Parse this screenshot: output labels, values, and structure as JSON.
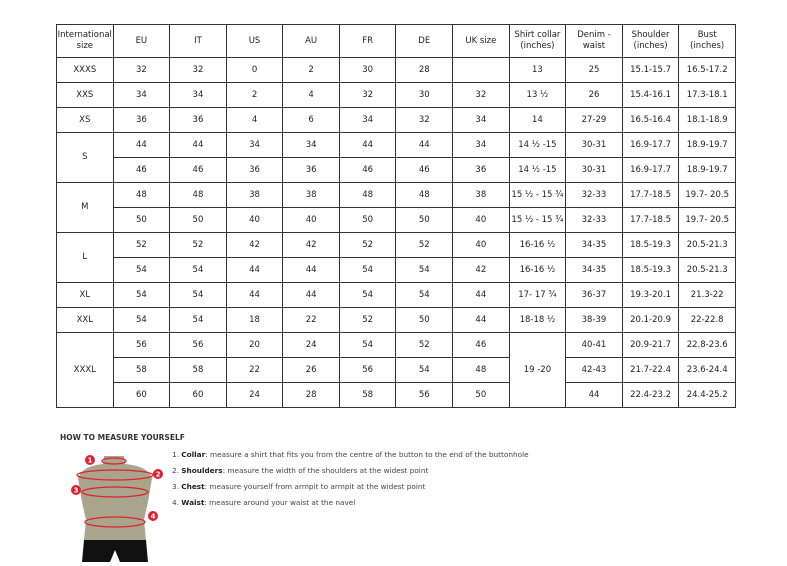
{
  "headers": [
    "International size",
    "EU",
    "IT",
    "US",
    "AU",
    "FR",
    "DE",
    "UK size",
    "Shirt collar (inches)",
    "Denim - waist",
    "Shoulder (inches)",
    "Bust (inches)"
  ],
  "groups": [
    {
      "size": "XXXS",
      "rows": [
        [
          "32",
          "32",
          "0",
          "2",
          "30",
          "28",
          "",
          "13",
          "25",
          "15.1-15.7",
          "16.5-17.2"
        ]
      ]
    },
    {
      "size": "XXS",
      "rows": [
        [
          "34",
          "34",
          "2",
          "4",
          "32",
          "30",
          "32",
          "13 ½",
          "26",
          "15.4-16.1",
          "17.3-18.1"
        ]
      ]
    },
    {
      "size": "XS",
      "rows": [
        [
          "36",
          "36",
          "4",
          "6",
          "34",
          "32",
          "34",
          "14",
          "27-29",
          "16.5-16.4",
          "18.1-18.9"
        ]
      ]
    },
    {
      "size": "S",
      "rows": [
        [
          "44",
          "44",
          "34",
          "34",
          "44",
          "44",
          "34",
          "14 ½ -15",
          "30-31",
          "16.9-17.7",
          "18.9-19.7"
        ],
        [
          "46",
          "46",
          "36",
          "36",
          "46",
          "46",
          "36",
          "14 ½ -15",
          "30-31",
          "16.9-17.7",
          "18.9-19.7"
        ]
      ]
    },
    {
      "size": "M",
      "rows": [
        [
          "48",
          "48",
          "38",
          "38",
          "48",
          "48",
          "38",
          "15 ½ - 15 ¾",
          "32-33",
          "17.7-18.5",
          "19.7- 20.5"
        ],
        [
          "50",
          "50",
          "40",
          "40",
          "50",
          "50",
          "40",
          "15 ½ - 15 ¾",
          "32-33",
          "17.7-18.5",
          "19.7- 20.5"
        ]
      ]
    },
    {
      "size": "L",
      "rows": [
        [
          "52",
          "52",
          "42",
          "42",
          "52",
          "52",
          "40",
          "16-16 ½",
          "34-35",
          "18.5-19.3",
          "20.5-21.3"
        ],
        [
          "54",
          "54",
          "44",
          "44",
          "54",
          "54",
          "42",
          "16-16 ½",
          "34-35",
          "18.5-19.3",
          "20.5-21.3"
        ]
      ]
    },
    {
      "size": "XL",
      "rows": [
        [
          "54",
          "54",
          "44",
          "44",
          "54",
          "54",
          "44",
          "17- 17 ¾",
          "36-37",
          "19.3-20.1",
          "21.3-22"
        ]
      ]
    },
    {
      "size": "XXL",
      "rows": [
        [
          "54",
          "54",
          "18",
          "22",
          "52",
          "50",
          "44",
          "18-18 ½",
          "38-39",
          "20.1-20.9",
          "22-22.8"
        ]
      ]
    },
    {
      "size": "XXXL",
      "rows": [
        [
          "56",
          "56",
          "20",
          "24",
          "54",
          "52",
          "46",
          "19 -20",
          "40-41",
          "20.9-21.7",
          "22.8-23.6"
        ],
        [
          "58",
          "58",
          "22",
          "26",
          "56",
          "54",
          "48",
          null,
          "42-43",
          "21.7-22.4",
          "23.6-24.4"
        ],
        [
          "60",
          "60",
          "24",
          "28",
          "58",
          "56",
          "50",
          null,
          "44",
          "22.4-23.2",
          "24.4-25.2"
        ]
      ]
    }
  ],
  "howto": {
    "title": "HOW TO MEASURE YOURSELF",
    "steps": [
      {
        "num": "1.",
        "term": "Collar",
        "text": ": measure a shirt that fits you from the centre of the button to the end of the buttonhole"
      },
      {
        "num": "2.",
        "term": "Shoulders",
        "text": ": measure the width of the shoulders at the widest point"
      },
      {
        "num": "3.",
        "term": "Chest",
        "text": ": measure yourself from armpit to armpit at the widest point"
      },
      {
        "num": "4.",
        "term": "Waist",
        "text": ": measure around your waist at the navel"
      }
    ],
    "markers": [
      "1",
      "2",
      "3",
      "4"
    ]
  },
  "colors": {
    "accent": "#e0202e",
    "torso": "#a9a48c",
    "shorts": "#111111"
  }
}
